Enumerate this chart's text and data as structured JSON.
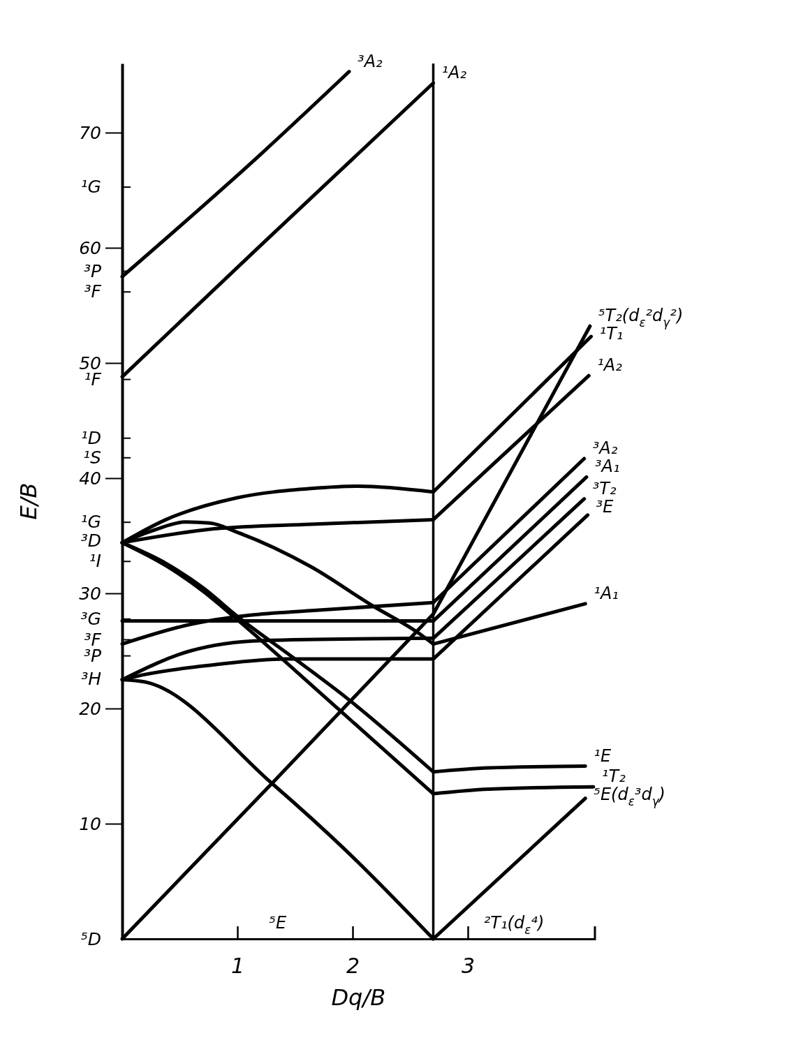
{
  "chart_data": {
    "type": "line",
    "xlabel": "Dq/B",
    "ylabel": "E/B",
    "xlim": [
      0,
      4.1
    ],
    "ylim": [
      0,
      76
    ],
    "xticks": [
      1,
      2,
      3
    ],
    "yticks": [
      {
        "value": 0,
        "label": "⁵D"
      },
      10,
      20,
      {
        "value": 22.6,
        "label": "³H"
      },
      {
        "value": 24.6,
        "label": "³P"
      },
      {
        "value": 26,
        "label": "³F"
      },
      {
        "value": 27.8,
        "label": "³G"
      },
      30,
      {
        "value": 32.8,
        "label": "¹I"
      },
      {
        "value": 34.6,
        "label": "³D"
      },
      {
        "value": 36.2,
        "label": "¹G"
      },
      40,
      {
        "value": 41.8,
        "label": "¹S"
      },
      {
        "value": 43.5,
        "label": "¹D"
      },
      {
        "value": 48.6,
        "label": "¹F"
      },
      50,
      {
        "value": 56.2,
        "label": "³F"
      },
      {
        "value": 58,
        "label": "³P"
      },
      60,
      {
        "value": 65.3,
        "label": "¹G"
      },
      70
    ],
    "ref_lines": [
      {
        "axis": "x",
        "value": 2.7,
        "color": "#000000"
      }
    ],
    "series": [
      {
        "color": "#000000",
        "x": [
          0,
          1.2,
          1.97
        ],
        "values": [
          57.5,
          68.1,
          75.3
        ]
      },
      {
        "color": "#000000",
        "x": [
          0,
          1.19,
          2.7
        ],
        "values": [
          48.8,
          60.1,
          74.3
        ]
      },
      {
        "color": "#000000",
        "x": [
          0,
          0.38,
          1.0,
          1.64,
          2.05,
          2.7
        ],
        "values": [
          34.4,
          36.4,
          38.3,
          39.1,
          39.3,
          38.8
        ]
      },
      {
        "color": "#000000",
        "x": [
          2.7,
          4.07
        ],
        "values": [
          38.8,
          52.3
        ]
      },
      {
        "color": "#000000",
        "x": [
          0,
          0.8,
          1.64,
          2.7
        ],
        "values": [
          34.4,
          35.6,
          36.0,
          36.4
        ]
      },
      {
        "color": "#000000",
        "x": [
          2.7,
          4.05
        ],
        "values": [
          36.4,
          48.9
        ]
      },
      {
        "color": "#000000",
        "x": [
          0,
          0.28,
          0.55,
          0.76,
          1.0,
          1.64,
          2.16,
          2.58,
          2.7
        ],
        "values": [
          34.4,
          35.5,
          36.2,
          36.1,
          35.3,
          32.3,
          29.0,
          26.5,
          25.6
        ]
      },
      {
        "color": "#000000",
        "x": [
          2.7,
          4.02
        ],
        "values": [
          25.6,
          29.1
        ]
      },
      {
        "color": "#000000",
        "x": [
          0,
          0.38,
          0.7,
          1.0,
          1.5,
          1.95,
          2.7
        ],
        "values": [
          34.4,
          32.6,
          30.5,
          28.0,
          24.3,
          20.9,
          14.5
        ]
      },
      {
        "color": "#000000",
        "x": [
          2.7,
          3.18,
          4.02
        ],
        "values": [
          14.5,
          14.85,
          15.0
        ]
      },
      {
        "color": "#000000",
        "x": [
          0,
          0.38,
          0.7,
          1.0,
          1.77,
          2.7
        ],
        "values": [
          34.4,
          32.4,
          30.2,
          27.7,
          20.9,
          12.6
        ]
      },
      {
        "color": "#000000",
        "x": [
          2.7,
          3.18,
          4.09
        ],
        "values": [
          12.6,
          13.0,
          13.2
        ]
      },
      {
        "color": "#000000",
        "x": [
          0,
          2.7
        ],
        "values": [
          27.6,
          27.6
        ]
      },
      {
        "color": "#000000",
        "x": [
          2.7,
          4.03
        ],
        "values": [
          27.6,
          40.1
        ]
      },
      {
        "color": "#000000",
        "x": [
          0,
          0.59,
          1.11,
          1.64,
          2.7
        ],
        "values": [
          25.6,
          27.3,
          28.1,
          28.5,
          29.2
        ]
      },
      {
        "color": "#000000",
        "x": [
          2.7,
          4.01
        ],
        "values": [
          29.2,
          41.7
        ]
      },
      {
        "color": "#000000",
        "x": [
          0,
          0.59,
          1.22,
          2.7
        ],
        "values": [
          22.5,
          25.0,
          25.9,
          26.1
        ]
      },
      {
        "color": "#000000",
        "x": [
          2.7,
          4.01
        ],
        "values": [
          26.1,
          38.2
        ]
      },
      {
        "color": "#000000",
        "x": [
          0,
          0.17,
          0.8,
          1.42,
          2.7
        ],
        "values": [
          22.5,
          22.9,
          23.8,
          24.3,
          24.3
        ]
      },
      {
        "color": "#000000",
        "x": [
          2.7,
          4.04
        ],
        "values": [
          24.3,
          36.8
        ]
      },
      {
        "color": "#000000",
        "x": [
          0,
          0.2,
          1.3,
          1.95,
          2.7
        ],
        "values": [
          22.5,
          22.3,
          13.5,
          7.6,
          0
        ]
      },
      {
        "color": "#000000",
        "x": [
          2.7,
          4.02
        ],
        "values": [
          0,
          12.2
        ]
      },
      {
        "color": "#000000",
        "x": [
          0,
          1.3,
          2.7
        ],
        "values": [
          0,
          13.5,
          28.2
        ]
      },
      {
        "color": "#000000",
        "x": [
          2.7,
          4.06
        ],
        "values": [
          28.2,
          53.2
        ]
      }
    ],
    "annotations": [
      {
        "text": "³A₂",
        "x": 1.97,
        "y": 75.3
      },
      {
        "text": "¹A₂",
        "x": 2.7,
        "y": 74.3
      },
      {
        "text": "⁵T₂(d$_{ε}$²d$_{γ}$²)",
        "x": 4.06,
        "y": 53.2
      },
      {
        "text": "¹T₁",
        "x": 4.07,
        "y": 52.3
      },
      {
        "text": "¹A₂",
        "x": 4.05,
        "y": 48.9
      },
      {
        "text": "³A₂",
        "x": 4.01,
        "y": 41.7
      },
      {
        "text": "³A₁",
        "x": 4.03,
        "y": 40.1
      },
      {
        "text": "³T₂",
        "x": 4.01,
        "y": 38.2
      },
      {
        "text": "³E",
        "x": 4.04,
        "y": 36.8
      },
      {
        "text": "¹A₁",
        "x": 4.02,
        "y": 29.1
      },
      {
        "text": "¹E",
        "x": 4.02,
        "y": 15.0
      },
      {
        "text": "¹T₂",
        "x": 4.09,
        "y": 13.2
      },
      {
        "text": "⁵E(d$_{ε}$³d$_{γ}$)",
        "x": 4.02,
        "y": 12.2
      },
      "⁵E",
      "²T₁(d$_{ε}$⁴)"
    ]
  }
}
